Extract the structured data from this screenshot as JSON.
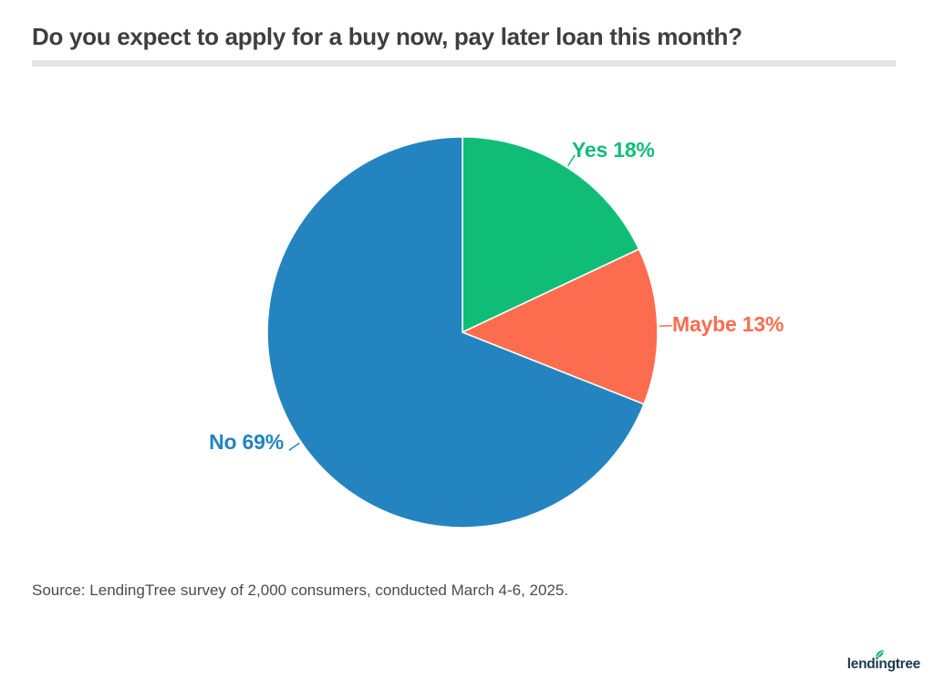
{
  "header": {
    "title": "Do you expect to apply for a buy now, pay later loan this month?"
  },
  "chart_data": {
    "type": "pie",
    "title": "Do you expect to apply for a buy now, pay later loan this month?",
    "unit": "%",
    "start_angle_deg": -90,
    "direction": "clockwise",
    "label_position": "outside",
    "categories": [
      "Yes",
      "Maybe",
      "No"
    ],
    "values": [
      18,
      13,
      69
    ],
    "slices": [
      {
        "label": "Yes",
        "value": 18,
        "display_label": "Yes 18%",
        "color": "#0fbd77"
      },
      {
        "label": "Maybe",
        "value": 13,
        "display_label": "Maybe 13%",
        "color": "#fc6d4f"
      },
      {
        "label": "No",
        "value": 69,
        "display_label": "No 69%",
        "color": "#2384c0"
      }
    ]
  },
  "footer": {
    "source": "Source: LendingTree survey of 2,000 consumers, conducted March 4-6, 2025."
  },
  "branding": {
    "logo_text": "lendingtree",
    "logo_color": "#1c3b52",
    "leaf_color": "#0fbd77"
  },
  "style": {
    "divider_color": "#e4e4e4",
    "title_color": "#3e3e3e",
    "slice_stroke": "#fdfdfb"
  }
}
